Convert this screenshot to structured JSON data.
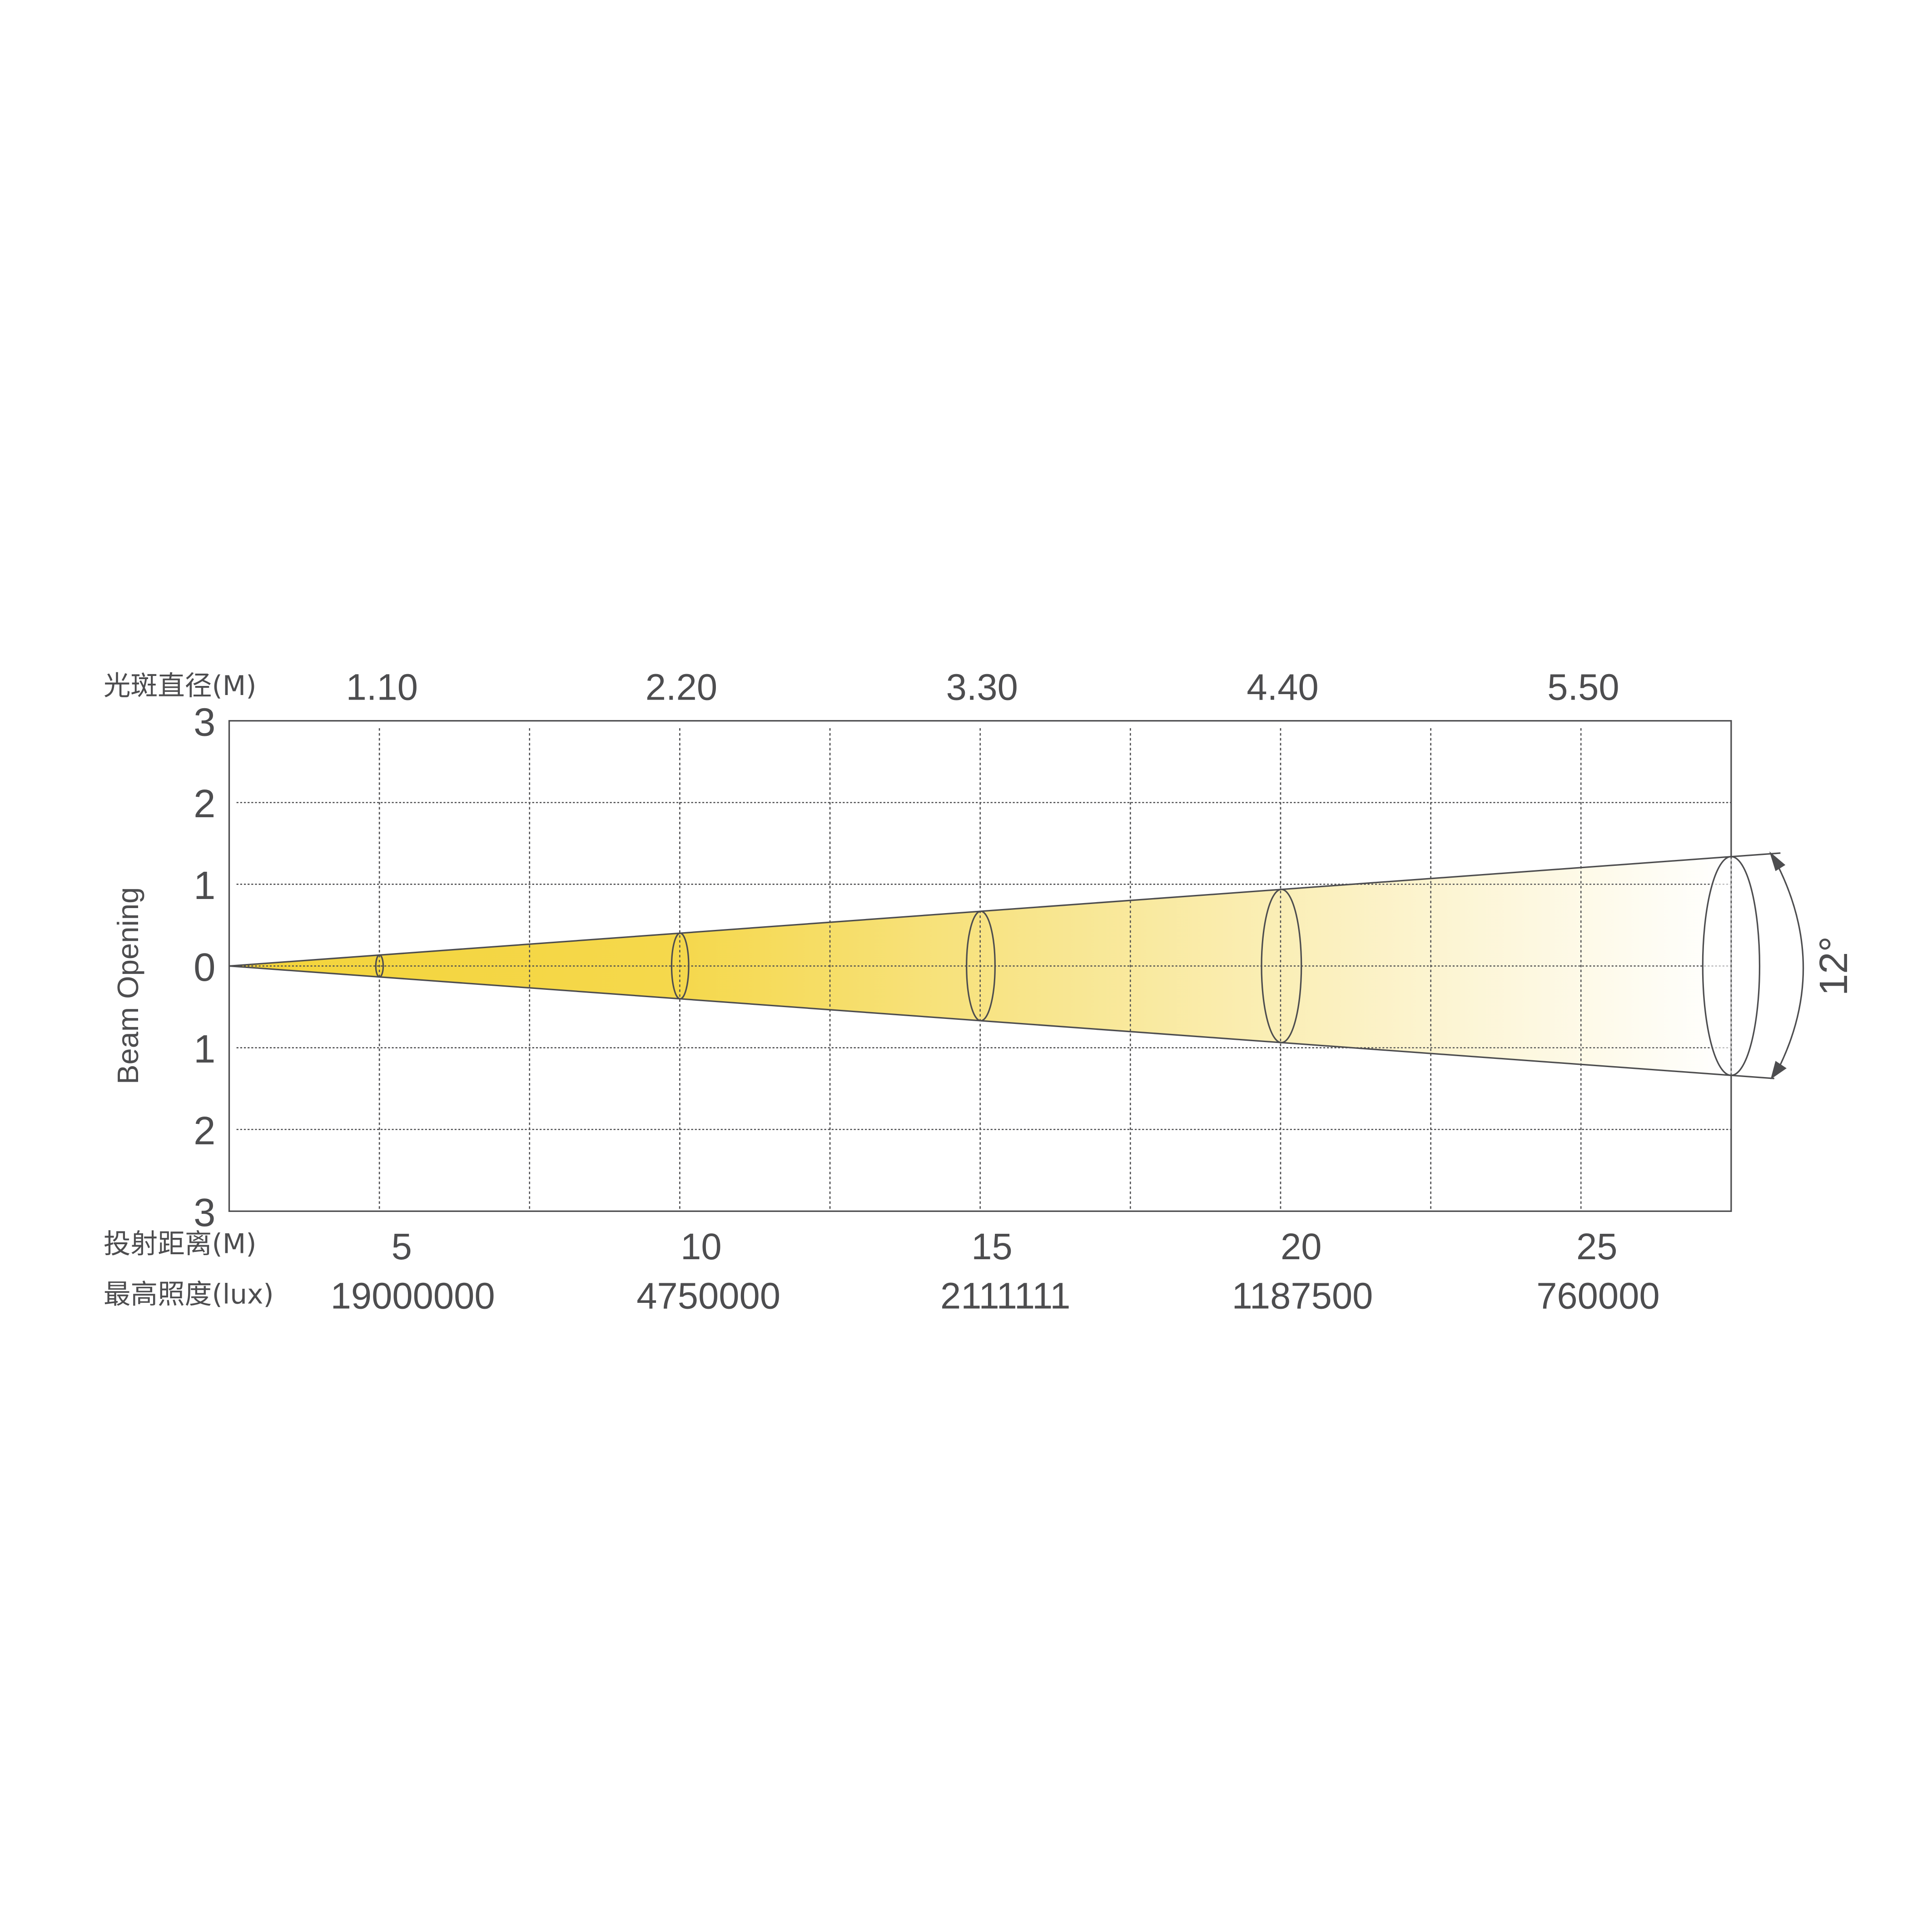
{
  "chart_data": {
    "type": "line",
    "title": "",
    "ylabel": "Beam Opening",
    "ylim": [
      -3,
      3
    ],
    "y_tick_labels": [
      "3",
      "2",
      "1",
      "0",
      "1",
      "2",
      "3"
    ],
    "grid": true,
    "beam_angle_label": "12°",
    "diameter_row_label": "光斑直径(M)",
    "distance_row_label": "投射距离(M)",
    "lux_row_label": "最高照度(lux)",
    "distances": [
      "5",
      "10",
      "15",
      "20",
      "25"
    ],
    "diameters": [
      "1.10",
      "2.20",
      "3.30",
      "4.40",
      "5.50"
    ],
    "lux": [
      "19000000",
      "4750000",
      "2111111",
      "1187500",
      "760000"
    ],
    "series": [
      {
        "x": [
          5,
          10,
          15,
          20,
          25
        ],
        "values": [
          1.1,
          2.2,
          3.3,
          4.4,
          5.5
        ]
      }
    ],
    "colors": {
      "beam_start": "#f4d43a",
      "beam_end": "#ffffff",
      "lines": "#4d4d4f"
    }
  }
}
